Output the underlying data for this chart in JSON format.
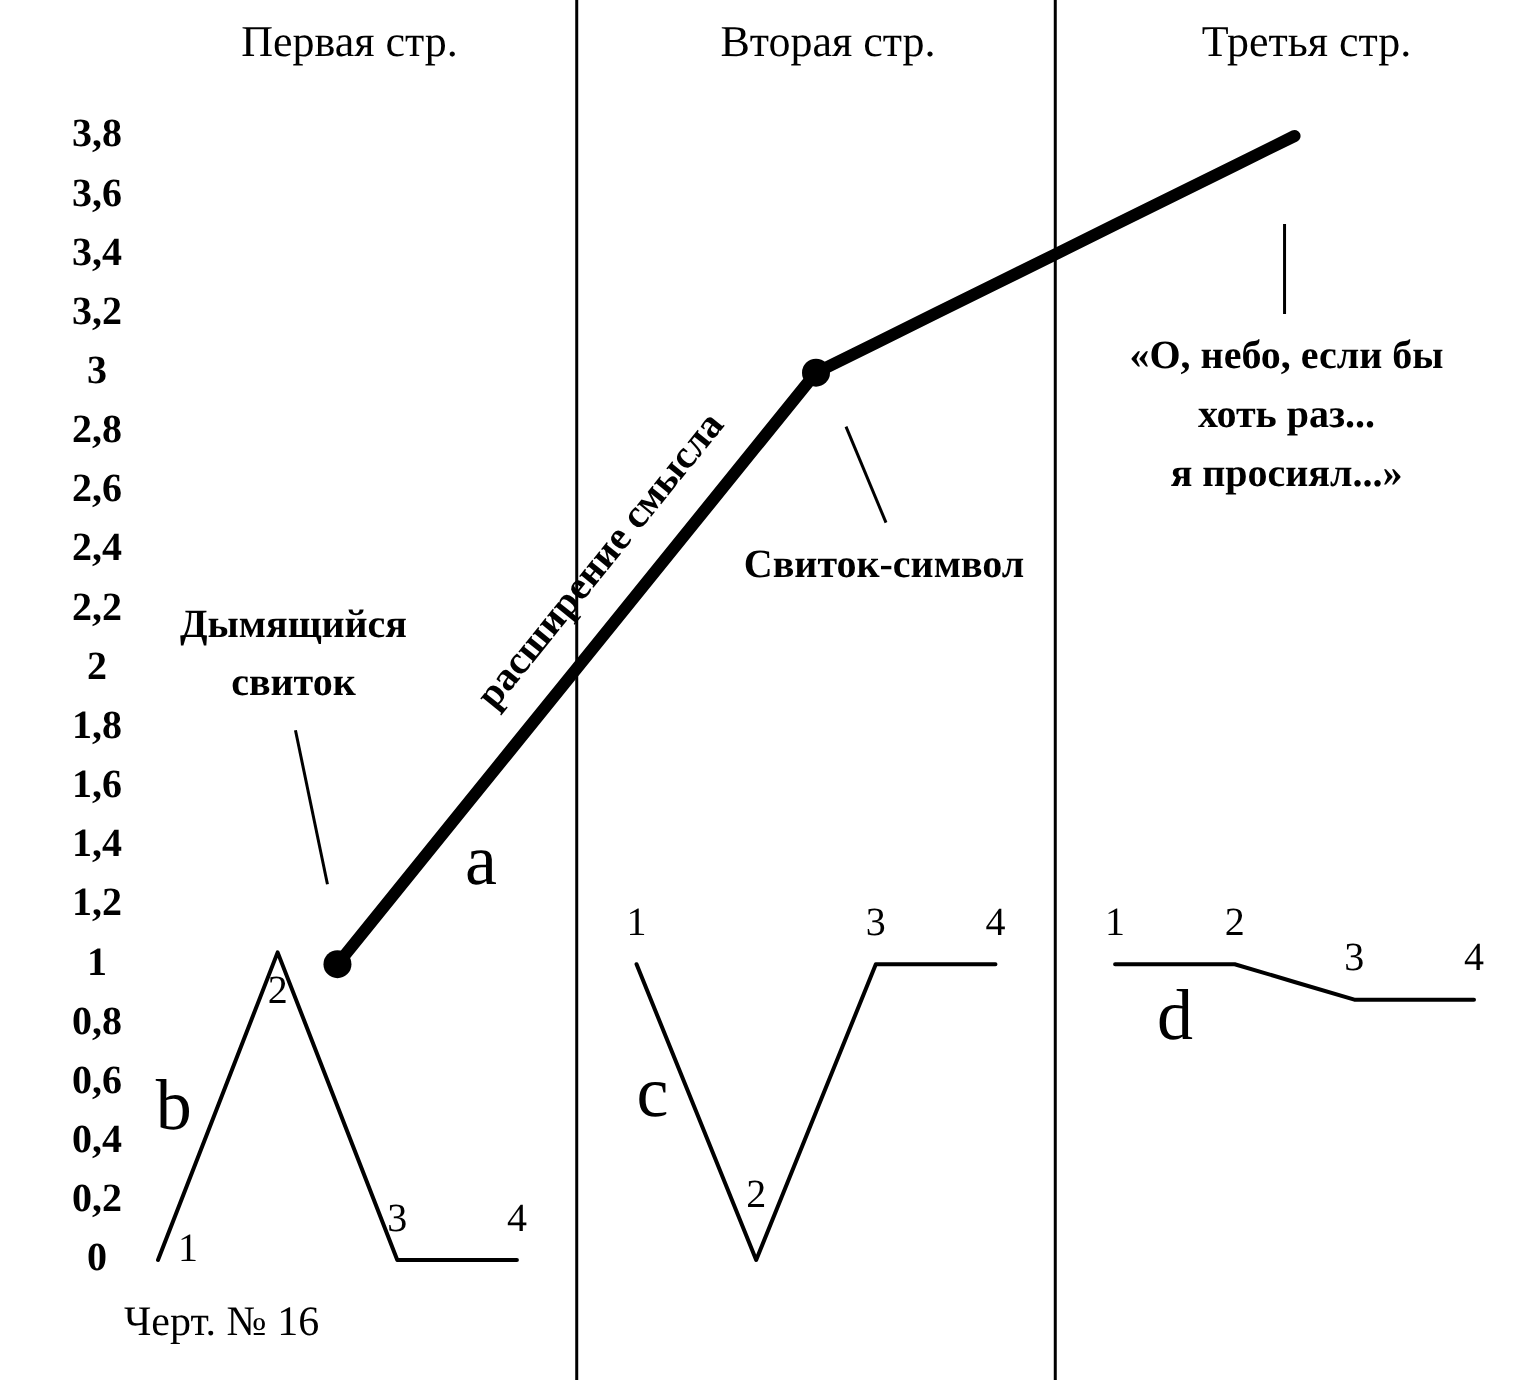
{
  "chart_data": {
    "type": "line",
    "categories": [
      null,
      null,
      null,
      null,
      null,
      null,
      null,
      null,
      null,
      null,
      null,
      null,
      null,
      null,
      null,
      null,
      null,
      null,
      null,
      null,
      null,
      null,
      null
    ],
    "ylim": [
      0,
      3.8
    ],
    "yticks": [
      0,
      {
        "value": 0.2,
        "label": "0,2"
      },
      {
        "value": 0.4,
        "label": "0,4"
      },
      {
        "value": 0.6,
        "label": "0,6"
      },
      {
        "value": 0.8,
        "label": "0,8"
      },
      1,
      {
        "value": 1.2,
        "label": "1,2"
      },
      {
        "value": 1.4,
        "label": "1,4"
      },
      {
        "value": 1.6,
        "label": "1,6"
      },
      {
        "value": 1.8,
        "label": "1,8"
      },
      2,
      {
        "value": 2.2,
        "label": "2,2"
      },
      {
        "value": 2.4,
        "label": "2,4"
      },
      {
        "value": 2.6,
        "label": "2,6"
      },
      {
        "value": 2.8,
        "label": "2,8"
      },
      3,
      {
        "value": 3.2,
        "label": "3,2"
      },
      {
        "value": 3.4,
        "label": "3,4"
      },
      {
        "value": 3.6,
        "label": "3,6"
      },
      {
        "value": 3.8,
        "label": "3,8"
      }
    ],
    "series": [
      {
        "name": "a",
        "color": "#000000",
        "values": [
          null,
          null,
          null,
          1,
          1.25,
          1.5,
          1.75,
          2,
          2.25,
          2.5,
          2.75,
          3,
          3.1,
          3.2,
          3.3,
          3.4,
          3.5,
          3.6,
          3.7,
          3.8,
          null,
          null,
          null
        ]
      },
      {
        "name": "b",
        "color": "#000000",
        "values": [
          0,
          0.52,
          1.04,
          0.52,
          0,
          0,
          0,
          null,
          null,
          null,
          null,
          null,
          null,
          null,
          null,
          null,
          null,
          null,
          null,
          null,
          null,
          null,
          null
        ]
      },
      {
        "name": "c",
        "color": "#000000",
        "values": [
          null,
          null,
          null,
          null,
          null,
          null,
          null,
          null,
          1,
          0.5,
          0,
          0.5,
          1,
          1,
          1,
          null,
          null,
          null,
          null,
          null,
          null,
          null,
          null
        ]
      },
      {
        "name": "d",
        "color": "#000000",
        "values": [
          null,
          null,
          null,
          null,
          null,
          null,
          null,
          null,
          null,
          null,
          null,
          null,
          null,
          null,
          null,
          null,
          1,
          1,
          1,
          0.94,
          0.88,
          0.88,
          0.88
        ]
      },
      {
        "type": "scatter",
        "color": "#000000",
        "marker": "circle",
        "values": [
          null,
          null,
          null,
          1,
          null,
          null,
          null,
          null,
          null,
          null,
          null,
          3,
          null,
          null,
          null,
          null,
          null,
          null,
          null,
          null,
          null,
          null,
          null
        ]
      }
    ],
    "annotations": [
      "Первая стр.",
      "Вторая стр.",
      "Третья стр.",
      "Дымящийся\nсвиток",
      "расширение смысла",
      "Свиток-символ",
      "«О, небо, если бы\nхоть раз...\nя просиял...»",
      "Черт. № 16",
      "1",
      "2",
      "3",
      "4",
      "1",
      "2",
      "3",
      "4",
      "1",
      "2",
      "3",
      "4"
    ],
    "grid": false,
    "legend": false
  }
}
